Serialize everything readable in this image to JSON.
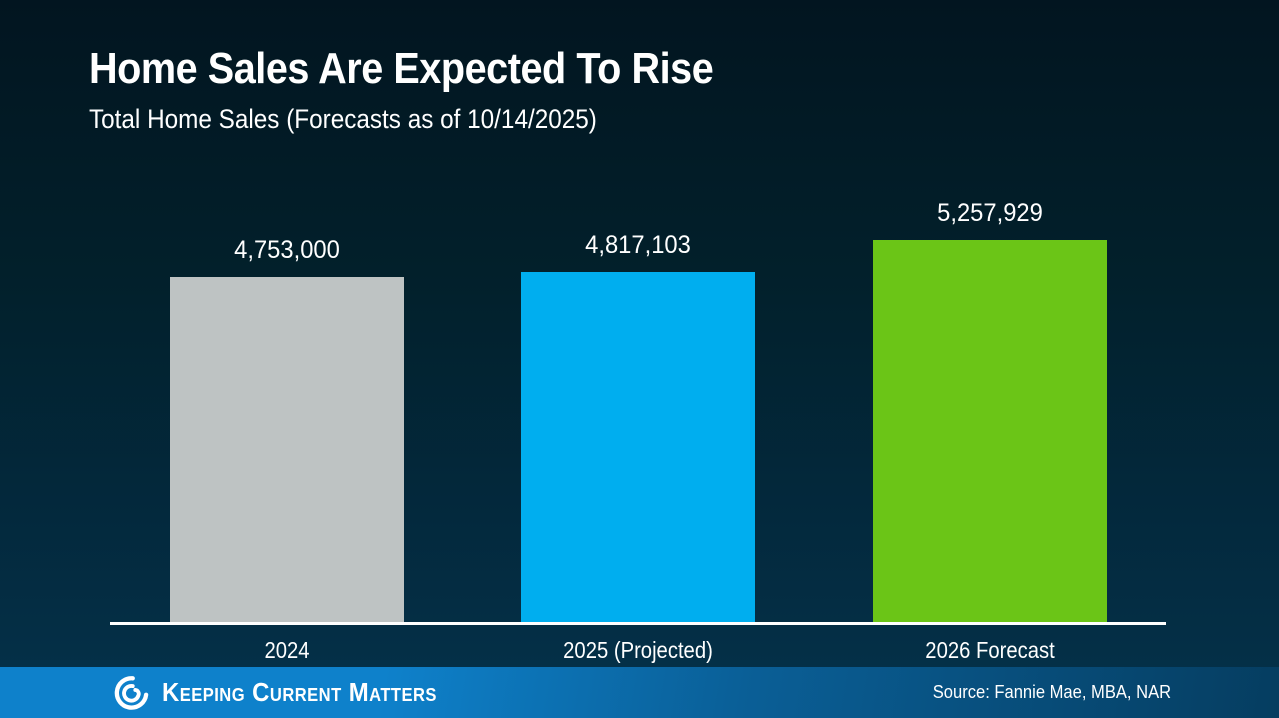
{
  "slide": {
    "title": "Home Sales Are Expected To Rise",
    "subtitle": "Total Home Sales (Forecasts as of 10/14/2025)"
  },
  "chart_data": {
    "type": "bar",
    "title": "Home Sales Are Expected To Rise",
    "subtitle": "Total Home Sales (Forecasts as of 10/14/2025)",
    "categories": [
      "2024",
      "2025 (Projected)",
      "2026 Forecast"
    ],
    "values": [
      4753000,
      4817103,
      5257929
    ],
    "value_labels": [
      "4,753,000",
      "4,817,103",
      "5,257,929"
    ],
    "bar_colors": [
      "#bec3c3",
      "#00aeef",
      "#6bc517"
    ],
    "xlabel": "",
    "ylabel": "",
    "ylim": [
      0,
      5257929
    ],
    "baseline": 0,
    "grid": false,
    "legend": false,
    "axis_line_color": "#ffffff",
    "label_color": "#ffffff"
  },
  "footer": {
    "brand": "Keeping Current Matters",
    "source": "Source: Fannie Mae, MBA, NAR",
    "gradient_left": "#0e81cb",
    "gradient_right": "#053d60"
  },
  "colors": {
    "background_top": "#021520",
    "background_bottom": "#05324b",
    "text": "#ffffff"
  }
}
